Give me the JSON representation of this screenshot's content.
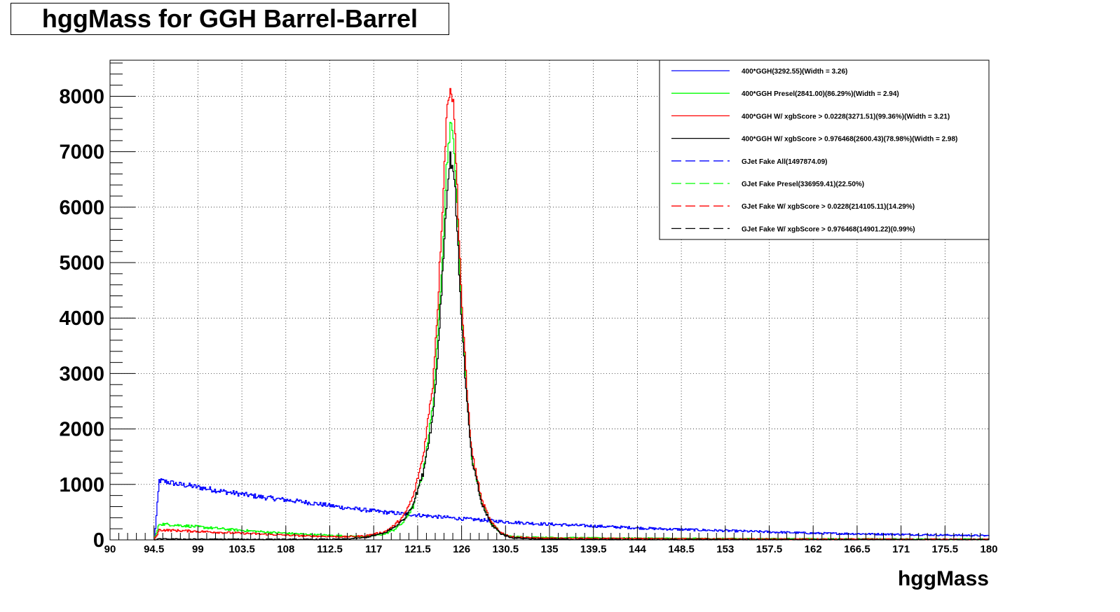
{
  "chart_data": {
    "type": "line",
    "title": "hggMass for GGH Barrel-Barrel",
    "xlabel": "hggMass",
    "ylabel": "",
    "xlim": [
      90,
      180
    ],
    "ylim": [
      0,
      8650
    ],
    "grid": true,
    "legend_position": "top-right",
    "x_ticks": [
      "90",
      "94.5",
      "99",
      "103.5",
      "108",
      "112.5",
      "117",
      "121.5",
      "126",
      "130.5",
      "135",
      "139.5",
      "144",
      "148.5",
      "153",
      "157.5",
      "162",
      "166.5",
      "171",
      "175.5",
      "180"
    ],
    "y_ticks": [
      "0",
      "1000",
      "2000",
      "3000",
      "4000",
      "5000",
      "6000",
      "7000",
      "8000"
    ],
    "legend_label_values": [
      "400*GGH(3292.55)(Width = 3.26)",
      "400*GGH Presel(2841.00)(86.29%)(Width = 2.94)",
      "400*GGH W/ xgbScore > 0.0228(3271.51)(99.36%)(Width = 3.21)",
      "400*GGH W/ xgbScore > 0.976468(2600.43)(78.98%)(Width = 2.98)",
      "GJet Fake All(1497874.09)",
      "GJet Fake Presel(336959.41)(22.50%)",
      "GJet Fake W/ xgbScore > 0.0228(214105.11)(14.29%)",
      "GJet Fake W/ xgbScore > 0.976468(14901.22)(0.99%)"
    ],
    "series": [
      {
        "color": "#0000ff",
        "style": "solid",
        "x": [
          94.5,
          95,
          96,
          97,
          98,
          100,
          102,
          104,
          106,
          108,
          110,
          112,
          114,
          116,
          118,
          120,
          122,
          124,
          126,
          128,
          130,
          134,
          138,
          142,
          146,
          150,
          154,
          158,
          162,
          166,
          170,
          174,
          178,
          180
        ],
        "y": [
          0,
          1070,
          1040,
          1000,
          980,
          920,
          860,
          810,
          760,
          720,
          680,
          630,
          580,
          540,
          500,
          470,
          440,
          410,
          380,
          360,
          330,
          290,
          260,
          230,
          200,
          180,
          160,
          140,
          120,
          110,
          100,
          90,
          80,
          75
        ]
      },
      {
        "color": "#00ff00",
        "style": "solid",
        "x": [
          94.5,
          95,
          98,
          102,
          106,
          110,
          114,
          116,
          118,
          119,
          120,
          121,
          122,
          123,
          123.5,
          124,
          124.4,
          124.8,
          125.2,
          125.6,
          126,
          126.5,
          127,
          128,
          129,
          130,
          131,
          134,
          140,
          150,
          160,
          170,
          180
        ],
        "y": [
          0,
          290,
          250,
          190,
          140,
          100,
          70,
          60,
          100,
          180,
          320,
          600,
          1200,
          2400,
          3600,
          5200,
          6700,
          7500,
          7100,
          5600,
          4000,
          2600,
          1500,
          700,
          300,
          120,
          60,
          45,
          35,
          25,
          20,
          15,
          10
        ]
      },
      {
        "color": "#ff0000",
        "style": "solid",
        "x": [
          94.5,
          95,
          98,
          102,
          106,
          110,
          114,
          116,
          118,
          119,
          120,
          121,
          122,
          123,
          123.5,
          124,
          124.4,
          124.8,
          125.2,
          125.6,
          126,
          126.5,
          127,
          128,
          129,
          130,
          131,
          134,
          140,
          150,
          160,
          170,
          180
        ],
        "y": [
          0,
          180,
          160,
          130,
          100,
          70,
          55,
          70,
          140,
          250,
          420,
          780,
          1500,
          2800,
          4200,
          6000,
          7600,
          8250,
          7700,
          5900,
          4200,
          2700,
          1600,
          720,
          310,
          130,
          55,
          30,
          25,
          18,
          12,
          10,
          8
        ]
      },
      {
        "color": "#000000",
        "style": "solid",
        "x": [
          94.5,
          95,
          98,
          102,
          106,
          110,
          114,
          116,
          118,
          119,
          120,
          121,
          122,
          123,
          123.5,
          124,
          124.4,
          124.8,
          125.2,
          125.6,
          126,
          126.5,
          127,
          128,
          129,
          130,
          131,
          134,
          140,
          150,
          160,
          170,
          180
        ],
        "y": [
          0,
          15,
          12,
          10,
          9,
          8,
          12,
          40,
          120,
          220,
          360,
          650,
          1200,
          2200,
          3300,
          4800,
          6100,
          6900,
          6600,
          5200,
          3800,
          2450,
          1450,
          650,
          280,
          110,
          40,
          12,
          6,
          4,
          3,
          2,
          2
        ]
      }
    ]
  },
  "legend": {
    "entries": [
      {
        "label": "400*GGH(3292.55)(Width = 3.26)",
        "color": "#0000ff",
        "style": "solid"
      },
      {
        "label": "400*GGH Presel(2841.00)(86.29%)(Width = 2.94)",
        "color": "#00ff00",
        "style": "solid"
      },
      {
        "label": "400*GGH W/ xgbScore > 0.0228(3271.51)(99.36%)(Width = 3.21)",
        "color": "#ff0000",
        "style": "solid"
      },
      {
        "label": "400*GGH W/ xgbScore > 0.976468(2600.43)(78.98%)(Width = 2.98)",
        "color": "#000000",
        "style": "solid"
      },
      {
        "label": "GJet Fake All(1497874.09)",
        "color": "#0000ff",
        "style": "dashed"
      },
      {
        "label": "GJet Fake Presel(336959.41)(22.50%)",
        "color": "#00ff00",
        "style": "dashed"
      },
      {
        "label": "GJet Fake W/ xgbScore > 0.0228(214105.11)(14.29%)",
        "color": "#ff0000",
        "style": "dashed"
      },
      {
        "label": "GJet Fake W/ xgbScore > 0.976468(14901.22)(0.99%)",
        "color": "#000000",
        "style": "dashed"
      }
    ]
  }
}
